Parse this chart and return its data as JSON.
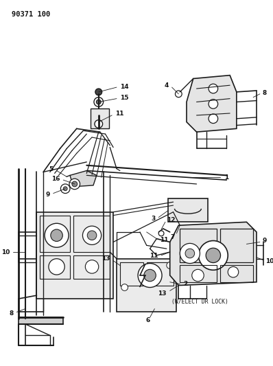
{
  "title_label": "90371 100",
  "bg_color": "#ffffff",
  "line_color": "#1a1a1a",
  "text_color": "#111111",
  "fig_width": 3.98,
  "fig_height": 5.33,
  "dpi": 100,
  "elect_label": "(W/ELECT DR LOCK)"
}
